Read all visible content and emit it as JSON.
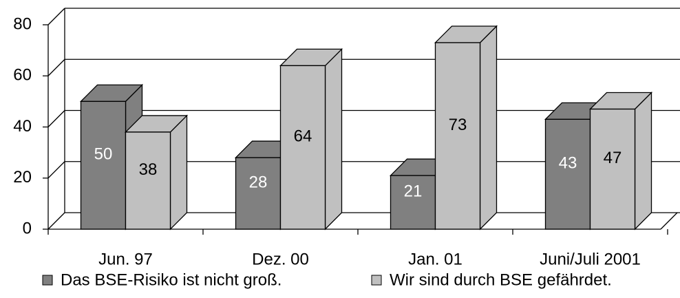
{
  "chart_data": {
    "type": "bar3d",
    "categories": [
      "Jun. 97",
      "Dez. 00",
      "Jan. 01",
      "Juni/Juli 2001"
    ],
    "series": [
      {
        "name": "Das BSE-Risiko ist nicht groß.",
        "color": "#808080",
        "label_color": "#ffffff",
        "values": [
          50,
          28,
          21,
          43
        ]
      },
      {
        "name": "Wir sind durch BSE gefährdet.",
        "color": "#c0c0c0",
        "label_color": "#000000",
        "values": [
          38,
          64,
          73,
          47
        ]
      }
    ],
    "ylim": [
      0,
      80
    ],
    "yticks": [
      0,
      20,
      40,
      60,
      80
    ],
    "grid": true,
    "legend": "bottom"
  }
}
